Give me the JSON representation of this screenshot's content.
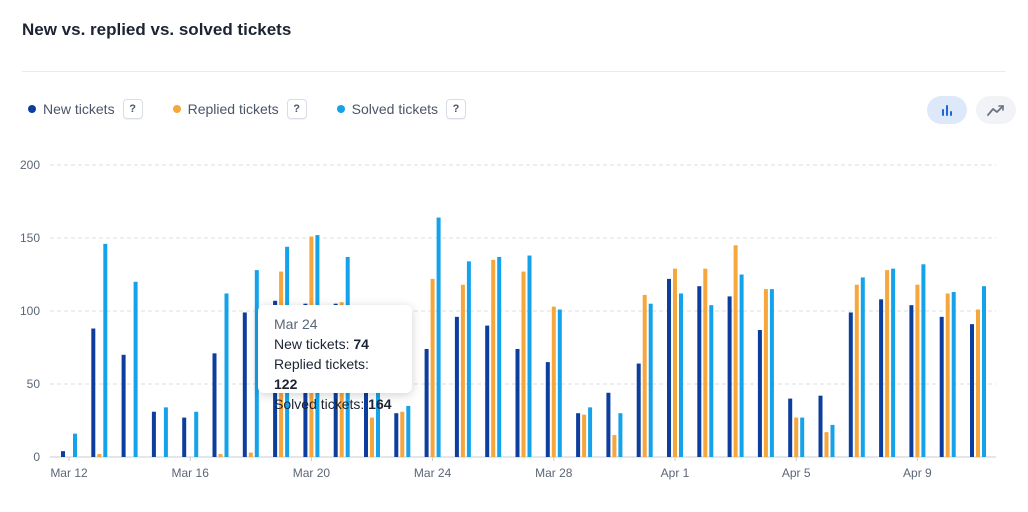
{
  "title": "New vs. replied vs. solved tickets",
  "legend": [
    {
      "label": "New tickets",
      "color": "#0d3e9e",
      "help": "?"
    },
    {
      "label": "Replied tickets",
      "color": "#f5a63c",
      "help": "?"
    },
    {
      "label": "Solved tickets",
      "color": "#14a3ea",
      "help": "?"
    }
  ],
  "view_toggle": {
    "bar_icon": "bar-chart-icon",
    "line_icon": "line-chart-icon",
    "selected": "bar"
  },
  "tooltip": {
    "date": "Mar 24",
    "new_label": "New tickets:",
    "new_value": "74",
    "replied_label": "Replied tickets:",
    "replied_value": "122",
    "solved_label": "Solved tickets:",
    "solved_value": "164"
  },
  "chart_data": {
    "type": "bar",
    "ylim": [
      0,
      200
    ],
    "yticks": [
      0,
      50,
      100,
      150,
      200
    ],
    "grid": true,
    "legend_position": "top-left",
    "categories": [
      "Mar 12",
      "Mar 13",
      "Mar 14",
      "Mar 15",
      "Mar 16",
      "Mar 17",
      "Mar 18",
      "Mar 19",
      "Mar 20",
      "Mar 21",
      "Mar 22",
      "Mar 23",
      "Mar 24",
      "Mar 25",
      "Mar 26",
      "Mar 27",
      "Mar 28",
      "Mar 29",
      "Mar 30",
      "Mar 31",
      "Apr 1",
      "Apr 2",
      "Apr 3",
      "Apr 4",
      "Apr 5",
      "Apr 6",
      "Apr 7",
      "Apr 8",
      "Apr 9",
      "Apr 10",
      "Apr 11"
    ],
    "tick_labels": [
      "Mar 12",
      "Mar 16",
      "Mar 20",
      "Mar 24",
      "Mar 28",
      "Apr 1",
      "Apr 5",
      "Apr 9"
    ],
    "series": [
      {
        "name": "New tickets",
        "color": "#0d3e9e",
        "values": [
          4,
          88,
          70,
          31,
          27,
          71,
          99,
          107,
          105,
          105,
          70,
          30,
          74,
          96,
          90,
          74,
          65,
          30,
          44,
          64,
          122,
          117,
          110,
          87,
          40,
          42,
          99,
          108,
          104,
          96,
          91
        ]
      },
      {
        "name": "Replied tickets",
        "color": "#f5a63c",
        "values": [
          0,
          2,
          0,
          0,
          0,
          2,
          3,
          127,
          151,
          106,
          27,
          31,
          122,
          118,
          135,
          127,
          103,
          29,
          15,
          111,
          129,
          129,
          145,
          115,
          27,
          17,
          118,
          128,
          118,
          112,
          101
        ]
      },
      {
        "name": "Solved tickets",
        "color": "#14a3ea",
        "values": [
          16,
          146,
          120,
          34,
          31,
          112,
          128,
          144,
          152,
          137,
          70,
          35,
          164,
          134,
          137,
          138,
          101,
          34,
          30,
          105,
          112,
          104,
          125,
          115,
          27,
          22,
          123,
          129,
          132,
          113,
          117
        ]
      }
    ]
  }
}
